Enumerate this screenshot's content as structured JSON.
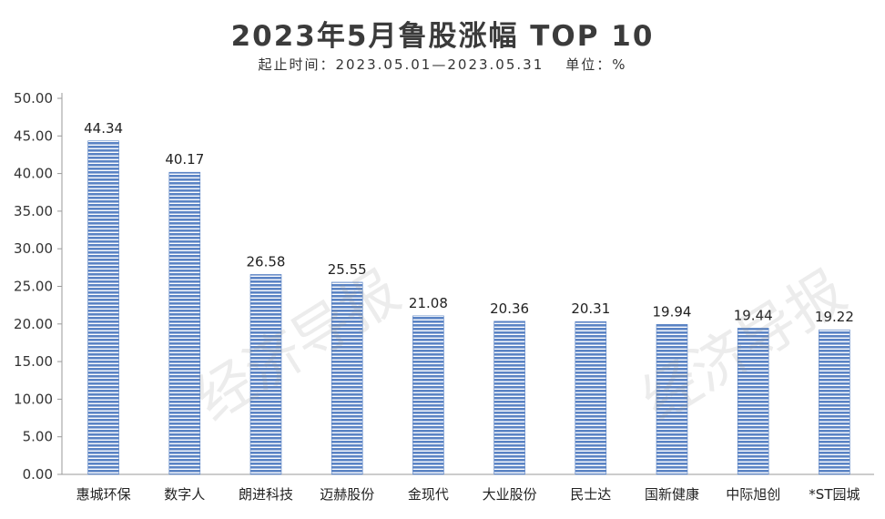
{
  "chart_data": {
    "type": "bar",
    "title": "2023年5月鲁股涨幅 TOP 10",
    "subtitle_period": "起止时间：2023.05.01—2023.05.31",
    "subtitle_unit": "单位：%",
    "categories": [
      "惠城环保",
      "数字人",
      "朗进科技",
      "迈赫股份",
      "金现代",
      "大业股份",
      "民士达",
      "国新健康",
      "中际旭创",
      "*ST园城"
    ],
    "values": [
      44.34,
      40.17,
      26.58,
      25.55,
      21.08,
      20.36,
      20.31,
      19.94,
      19.44,
      19.22
    ],
    "value_labels": [
      "44.34",
      "40.17",
      "26.58",
      "25.55",
      "21.08",
      "20.36",
      "20.31",
      "19.94",
      "19.44",
      "19.22"
    ],
    "yticks": [
      "0.00",
      "5.00",
      "10.00",
      "15.00",
      "20.00",
      "25.00",
      "30.00",
      "35.00",
      "40.00",
      "45.00",
      "50.00"
    ],
    "ylim": [
      0,
      50
    ],
    "grid": false,
    "bar_color": "#5a83c4"
  },
  "watermark": "经济导报"
}
